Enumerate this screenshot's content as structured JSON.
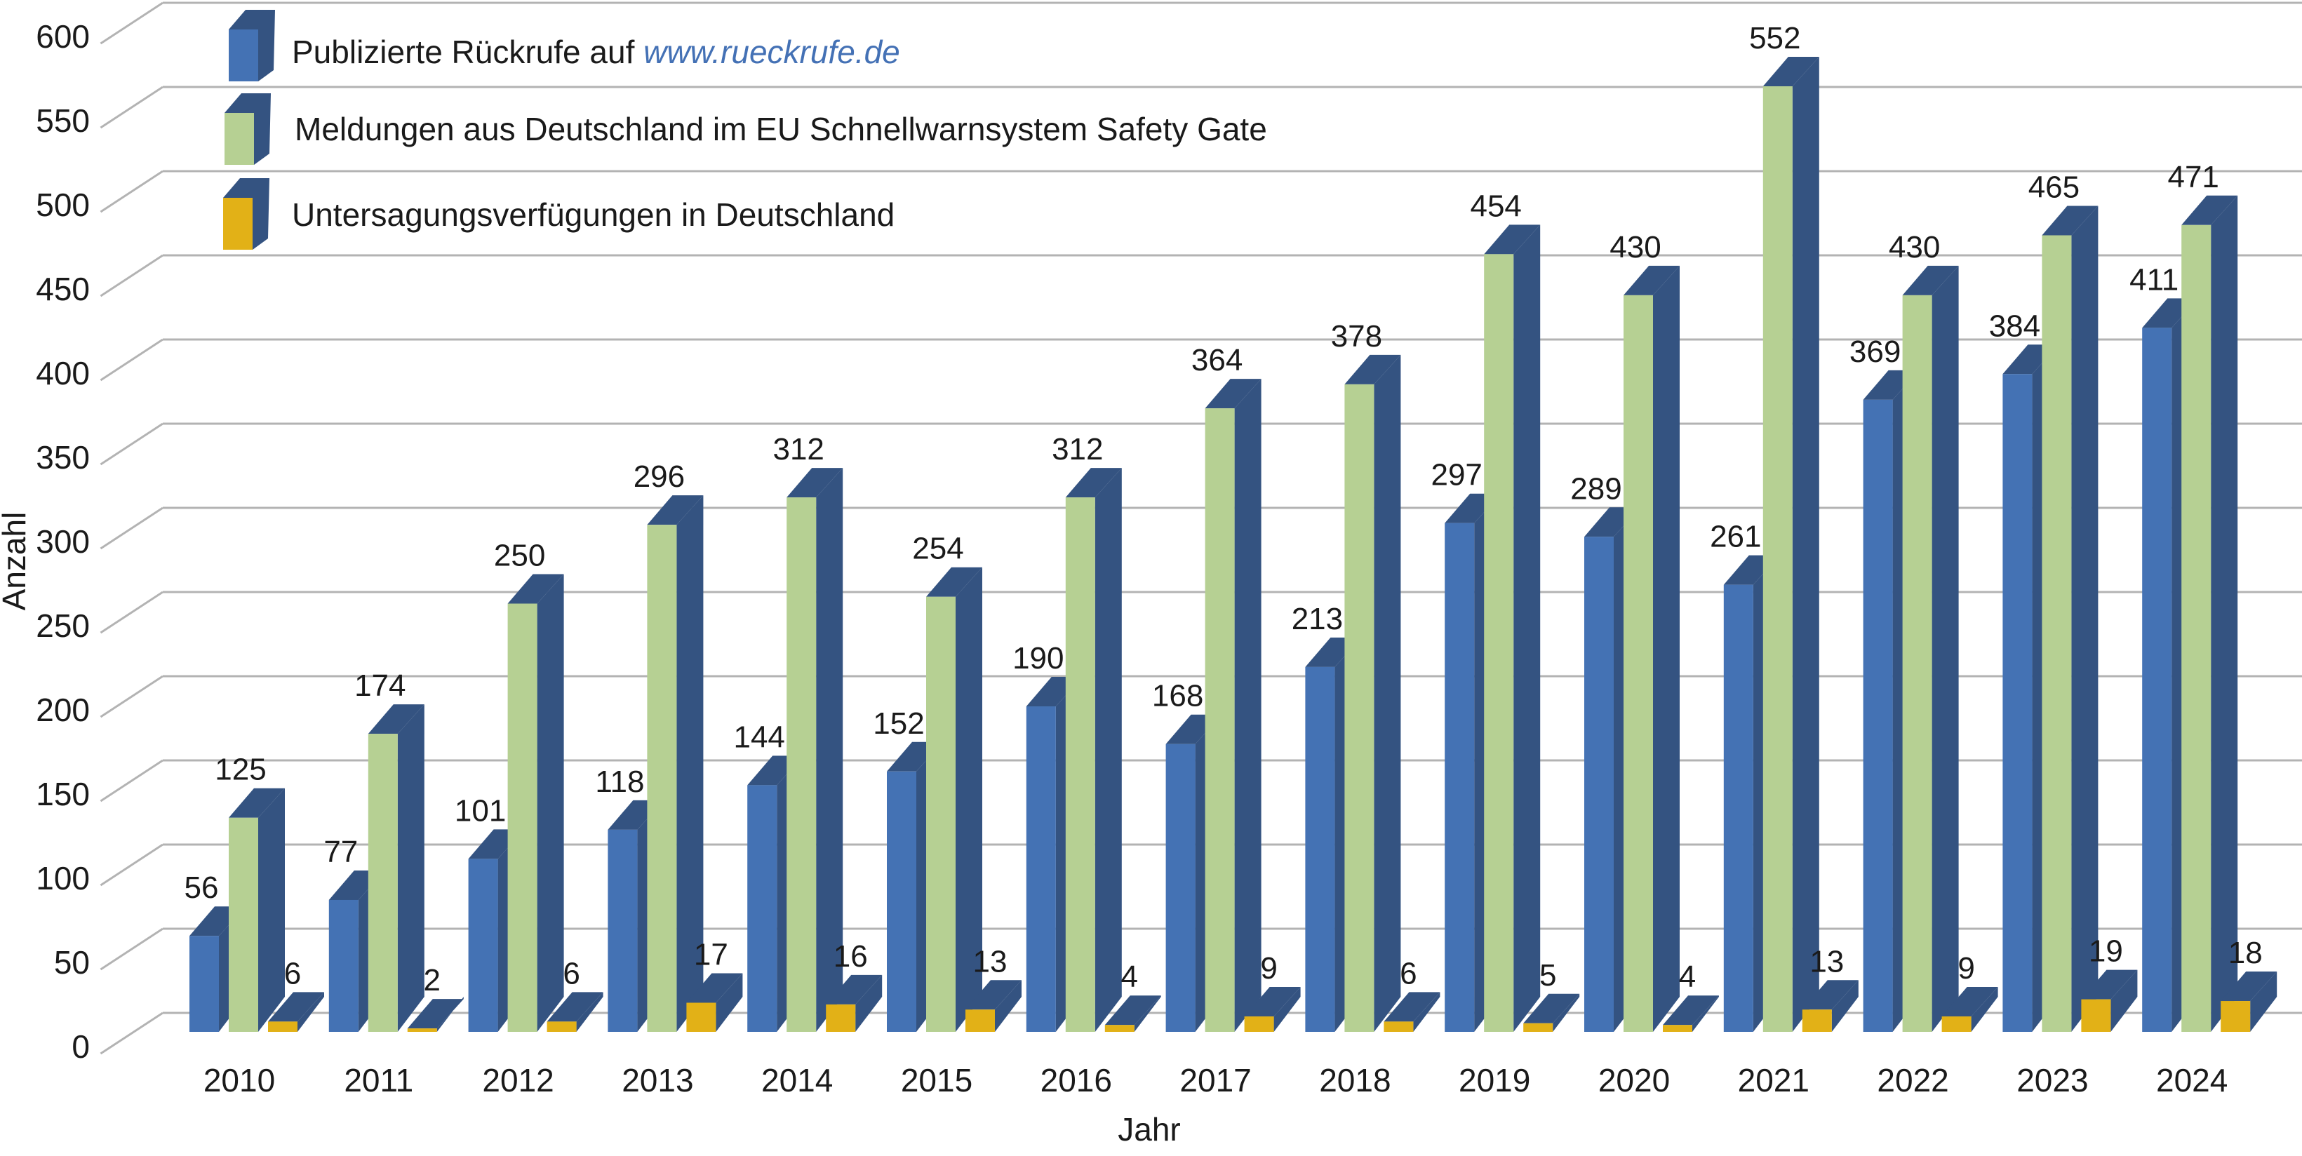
{
  "chart_data": {
    "type": "bar",
    "title": "",
    "xlabel": "Jahr",
    "ylabel": "Anzahl",
    "ylim": [
      0,
      600
    ],
    "yticks": [
      0,
      50,
      100,
      150,
      200,
      250,
      300,
      350,
      400,
      450,
      500,
      550,
      600
    ],
    "grid": true,
    "style": "3d-clustered-column",
    "legend_position": "top-left",
    "categories": [
      "2010",
      "2011",
      "2012",
      "2013",
      "2014",
      "2015",
      "2016",
      "2017",
      "2018",
      "2019",
      "2020",
      "2021",
      "2022",
      "2023",
      "2024"
    ],
    "series": [
      {
        "name": "Publizierte Rückrufe auf www.rueckrufe.de",
        "legend_text": "Publizierte Rückrufe auf ",
        "legend_link": "www.rueckrufe.de",
        "color": "#4472b4",
        "side_color": "#345381",
        "values": [
          56,
          77,
          101,
          118,
          144,
          152,
          190,
          168,
          213,
          297,
          289,
          261,
          369,
          384,
          411
        ]
      },
      {
        "name": "Meldungen aus Deutschland im EU Schnellwarnsystem Safety Gate",
        "legend_text": "Meldungen aus Deutschland im EU Schnellwarnsystem Safety Gate",
        "color": "#b6d093",
        "side_color": "#345381",
        "values": [
          125,
          174,
          250,
          296,
          312,
          254,
          312,
          364,
          378,
          454,
          430,
          552,
          430,
          465,
          471
        ]
      },
      {
        "name": "Untersagungsverfügungen in Deutschland",
        "legend_text": "Untersagungsverfügungen in Deutschland",
        "color": "#e2b117",
        "side_color": "#345381",
        "values": [
          6,
          2,
          6,
          17,
          16,
          13,
          4,
          9,
          6,
          5,
          4,
          13,
          9,
          19,
          18
        ]
      }
    ]
  },
  "colors": {
    "grid": "#b3b3b3",
    "text": "#1a1a1a"
  }
}
